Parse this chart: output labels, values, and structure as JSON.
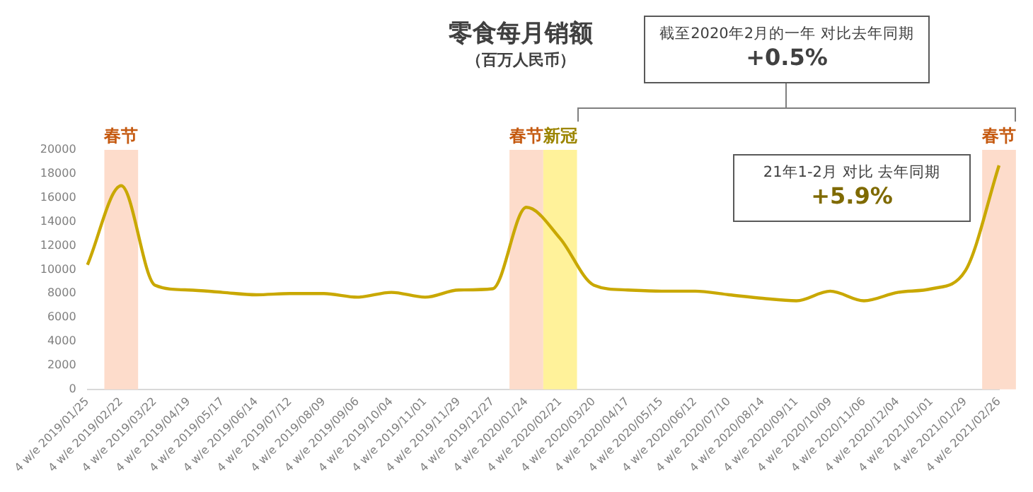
{
  "chart_data": {
    "type": "line",
    "title": "零食每月销额",
    "subtitle": "（百万人民币）",
    "categories": [
      "4 w/e 2019/01/25",
      "4 w/e 2019/02/22",
      "4 w/e 2019/03/22",
      "4 w/e 2019/04/19",
      "4 w/e 2019/05/17",
      "4 w/e 2019/06/14",
      "4 w/e 2019/07/12",
      "4 w/e 2019/08/09",
      "4 w/e 2019/09/06",
      "4 w/e 2019/10/04",
      "4 w/e 2019/11/01",
      "4 w/e 2019/11/29",
      "4 w/e 2019/12/27",
      "4 w/e 2020/01/24",
      "4 w/e 2020/02/21",
      "4 w/e 2020/03/20",
      "4 w/e 2020/04/17",
      "4 w/e 2020/05/15",
      "4 w/e 2020/06/12",
      "4 w/e 2020/07/10",
      "4 w/e 2020/08/14",
      "4 w/e 2020/09/11",
      "4 w/e 2020/10/09",
      "4 w/e 2020/11/06",
      "4 w/e 2020/12/04",
      "4 w/e 2021/01/01",
      "4 w/e 2021/01/29",
      "4 w/e 2021/02/26"
    ],
    "series": [
      {
        "color": "#c9a800",
        "values": [
          10400,
          17000,
          8700,
          8300,
          8100,
          7900,
          8000,
          8000,
          7700,
          8100,
          7700,
          8300,
          8400,
          15200,
          12600,
          8700,
          8300,
          8200,
          8200,
          7900,
          7600,
          7400,
          8200,
          7400,
          8100,
          8400,
          9900,
          18700
        ]
      }
    ],
    "ylim": [
      0,
      20000
    ],
    "yticks": [
      0,
      2000,
      4000,
      6000,
      8000,
      10000,
      12000,
      14000,
      16000,
      18000,
      20000
    ],
    "grid": false,
    "legend": false,
    "marker": "none",
    "line_style": "solid",
    "bands": [
      {
        "axis": "x",
        "from": "4 w/e 2019/02/22",
        "to": "4 w/e 2019/02/22",
        "label": "春节",
        "color": "#fddccb"
      },
      {
        "axis": "x",
        "from": "4 w/e 2020/01/24",
        "to": "4 w/e 2020/01/24",
        "label": "春节",
        "color": "#fddccb"
      },
      {
        "axis": "x",
        "from": "4 w/e 2020/02/21",
        "to": "4 w/e 2020/02/21",
        "label": "新冠",
        "color": "#fff29a"
      },
      {
        "axis": "x",
        "from": "4 w/e 2021/02/26",
        "to": "4 w/e 2021/02/26",
        "label": "春节",
        "color": "#fddccb"
      }
    ],
    "annotations": [
      "截至2020年2月的一年 对比去年同期",
      "+0.5%",
      "21年1-2月 对比 去年同期",
      "+5.9%"
    ]
  }
}
